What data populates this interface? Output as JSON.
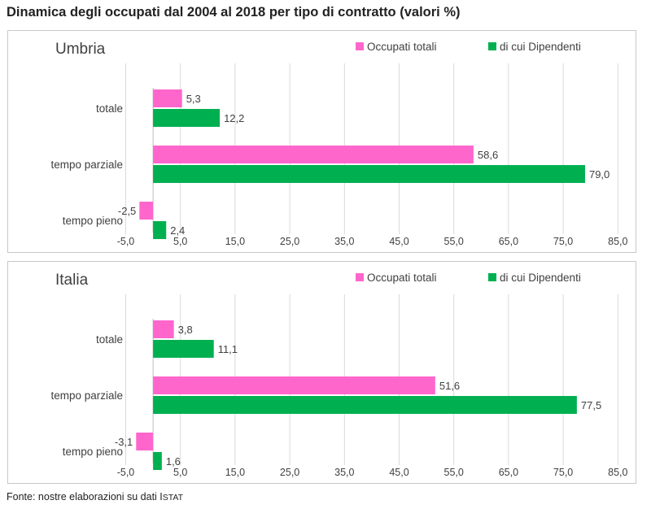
{
  "title": "Dinamica degli occupati dal 2004 al 2018 per tipo di contratto (valori %)",
  "source": {
    "text": "Fonte: nostre elaborazioni su dati I",
    "smallcaps": "STAT"
  },
  "colors": {
    "occupati_totali": "#ff66cc",
    "dipendenti": "#00b050",
    "grid": "#d9d9d9",
    "border": "#c8c8c8"
  },
  "chart_data": [
    {
      "type": "bar",
      "orientation": "horizontal",
      "title": "Umbria",
      "categories": [
        "totale",
        "tempo parziale",
        "tempo pieno"
      ],
      "series": [
        {
          "name": "Occupati totali",
          "values": [
            5.3,
            58.6,
            -2.5
          ],
          "labels": [
            "5,3",
            "58,6",
            "-2,5"
          ]
        },
        {
          "name": "di cui Dipendenti",
          "values": [
            12.2,
            79.0,
            2.4
          ],
          "labels": [
            "12,2",
            "79,0",
            "2,4"
          ]
        }
      ],
      "xlim": [
        -5,
        85
      ],
      "xticks": [
        "-5,0",
        "5,0",
        "15,0",
        "25,0",
        "35,0",
        "45,0",
        "55,0",
        "65,0",
        "75,0",
        "85,0"
      ],
      "grid": true,
      "legend": "top-right"
    },
    {
      "type": "bar",
      "orientation": "horizontal",
      "title": "Italia",
      "categories": [
        "totale",
        "tempo parziale",
        "tempo pieno"
      ],
      "series": [
        {
          "name": "Occupati totali",
          "values": [
            3.8,
            51.6,
            -3.1
          ],
          "labels": [
            "3,8",
            "51,6",
            "-3,1"
          ]
        },
        {
          "name": "di cui Dipendenti",
          "values": [
            11.1,
            77.5,
            1.6
          ],
          "labels": [
            "11,1",
            "77,5",
            "1,6"
          ]
        }
      ],
      "xlim": [
        -5,
        85
      ],
      "xticks": [
        "-5,0",
        "5,0",
        "15,0",
        "25,0",
        "35,0",
        "45,0",
        "55,0",
        "65,0",
        "75,0",
        "85,0"
      ],
      "grid": true,
      "legend": "top-right"
    }
  ]
}
